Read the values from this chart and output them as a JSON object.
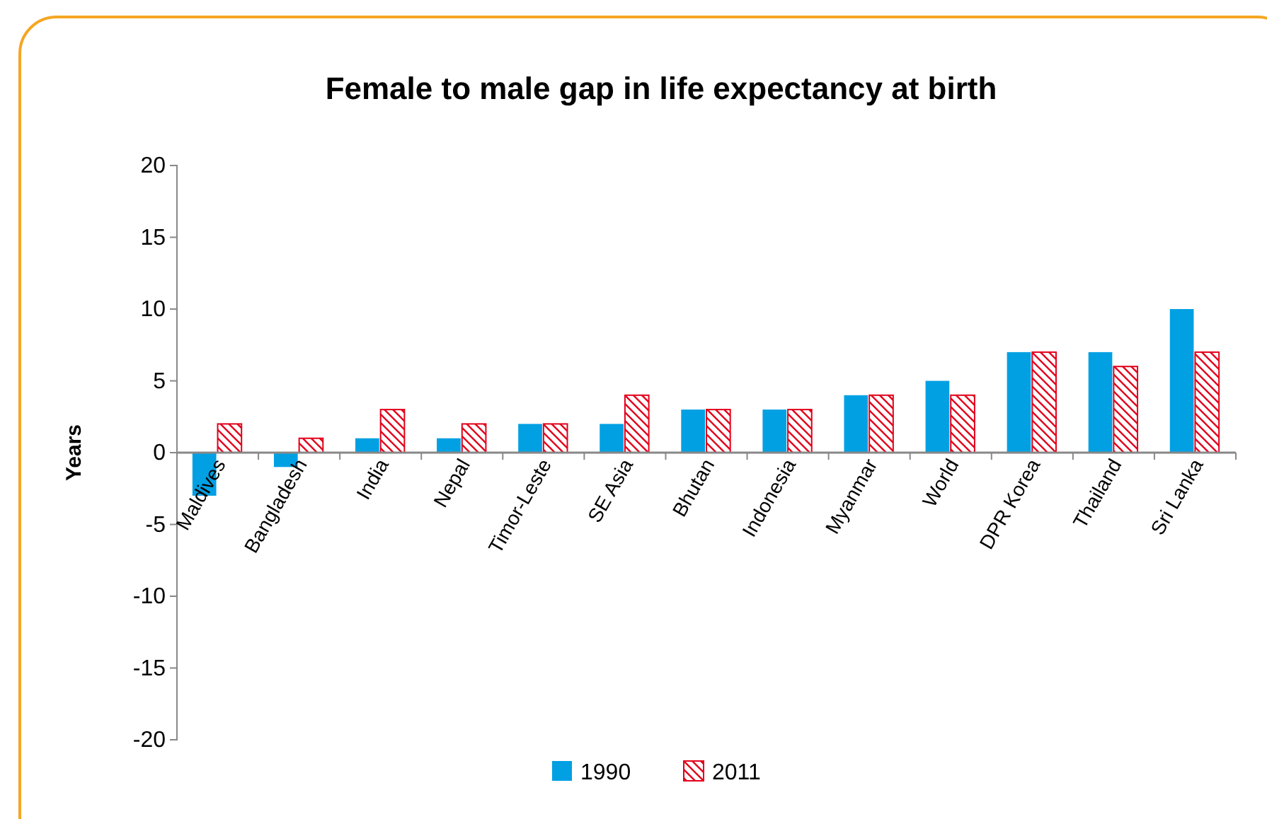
{
  "chart_data": {
    "type": "bar",
    "title": "Female to male gap in life expectancy at birth",
    "ylabel": "Years",
    "categories": [
      "Maldives",
      "Bangladesh",
      "India",
      "Nepal",
      "Timor-Leste",
      "SE Asia",
      "Bhutan",
      "Indonesia",
      "Myanmar",
      "World",
      "DPR Korea",
      "Thailand",
      "Sri Lanka"
    ],
    "series": [
      {
        "name": "1990",
        "color": "#00a0e3",
        "values": [
          -3,
          -1,
          1,
          1,
          2,
          2,
          3,
          3,
          4,
          5,
          7,
          7,
          10
        ]
      },
      {
        "name": "2011",
        "color": "#e3001b",
        "values": [
          2,
          1,
          3,
          2,
          2,
          4,
          3,
          3,
          4,
          4,
          7,
          6,
          7
        ]
      }
    ],
    "ylim": [
      -20,
      20
    ],
    "yticks": [
      -20,
      -15,
      -10,
      -5,
      0,
      5,
      10,
      15,
      20
    ],
    "grid": false,
    "legend": "bottom"
  }
}
